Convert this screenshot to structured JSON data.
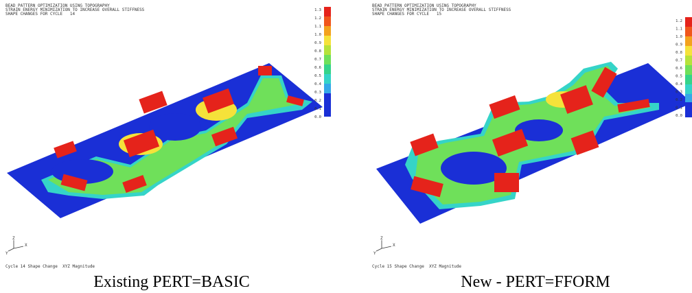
{
  "panels": [
    {
      "header": [
        "BEAD PATTERN OPTIMIZATION USING TOPOGRAPHY",
        "STRAIN ENERGY MINIMIZATION TO INCREASE OVERALL STIFFNESS",
        "SHAPE CHANGES FOR CYCLE   14"
      ],
      "legend": [
        "1.3",
        "1.2",
        "1.1",
        "1.0",
        "0.9",
        "0.8",
        "0.7",
        "0.6",
        "0.5",
        "0.4",
        "0.3",
        "0.2",
        "0.1",
        "0.0"
      ],
      "triad": [
        "Z",
        "Y",
        "X"
      ],
      "footer": "Cycle 14 Shape Change  XYZ Magnitude",
      "caption": "Existing PERT=BASIC"
    },
    {
      "header": [
        "BEAD PATTERN OPTIMIZATION USING TOPOGRAPHY",
        "STRAIN ENERGY MINIMIZATION TO INCREASE OVERALL STIFFNESS",
        "SHAPE CHANGES FOR CYCLE   15"
      ],
      "legend": [
        "1.2",
        "1.1",
        "1.0",
        "0.9",
        "0.8",
        "0.7",
        "0.6",
        "0.5",
        "0.4",
        "0.3",
        "0.2",
        "0.1",
        "0.0"
      ],
      "triad": [
        "Z",
        "Y",
        "X"
      ],
      "footer": "Cycle 15 Shape Change  XYZ Magnitude",
      "caption": "New - PERT=FFORM"
    }
  ]
}
